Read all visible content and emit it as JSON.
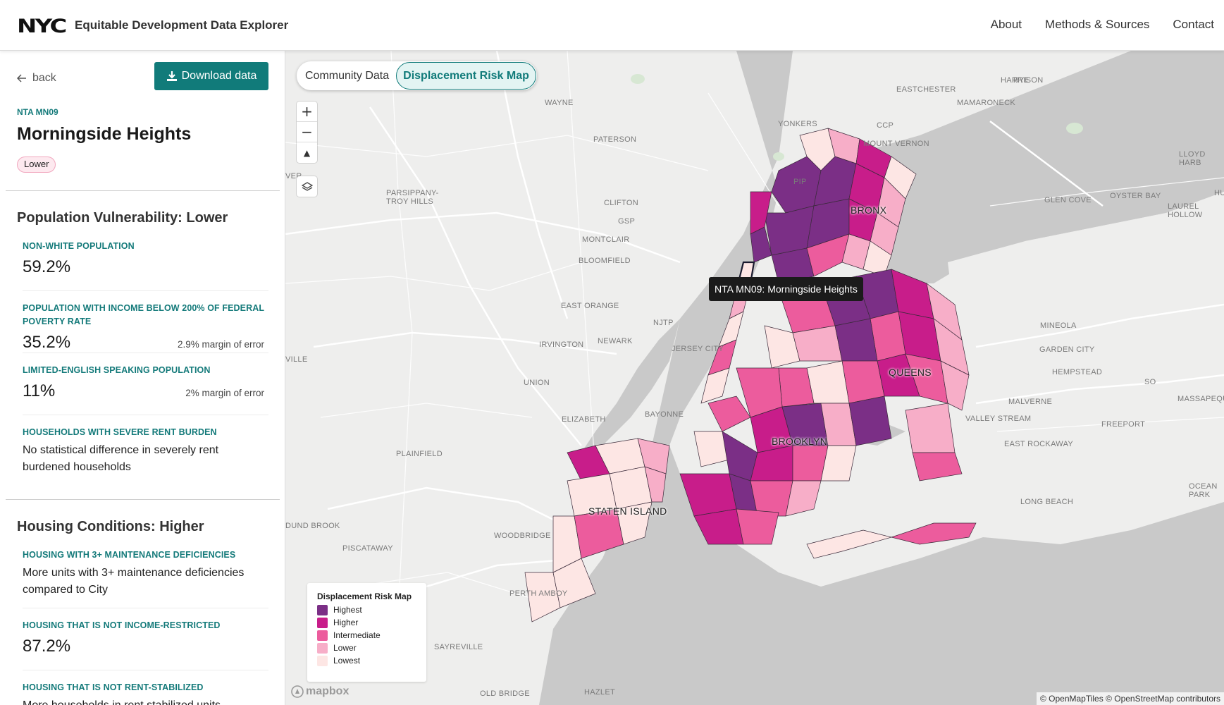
{
  "header": {
    "logo": "NYC",
    "title": "Equitable Development Data Explorer",
    "nav": [
      "About",
      "Methods & Sources",
      "Contact"
    ]
  },
  "sidebar": {
    "back_label": "back",
    "download_label": "Download data",
    "nta_code": "NTA MN09",
    "nta_name": "Morningside Heights",
    "risk_badge": "Lower",
    "sections": [
      {
        "title": "Population Vulnerability: Lower",
        "metrics": [
          {
            "label": "NON-WHITE POPULATION",
            "value": "59.2%",
            "moe": ""
          },
          {
            "label": "POPULATION WITH INCOME BELOW 200% OF FEDERAL POVERTY RATE",
            "value": "35.2%",
            "moe": "2.9% margin of error"
          },
          {
            "label": "LIMITED-ENGLISH SPEAKING POPULATION",
            "value": "11%",
            "moe": "2% margin of error"
          },
          {
            "label": "HOUSEHOLDS WITH SEVERE RENT BURDEN",
            "text": "No statistical difference in severely rent burdened households"
          }
        ]
      },
      {
        "title": "Housing Conditions: Higher",
        "metrics": [
          {
            "label": "HOUSING WITH 3+ MAINTENANCE DEFICIENCIES",
            "text": "More units with 3+ maintenance deficiencies compared to City"
          },
          {
            "label": "HOUSING THAT IS NOT INCOME-RESTRICTED",
            "value": "87.2%"
          },
          {
            "label": "HOUSING THAT IS NOT RENT-STABILIZED",
            "text": "More households in rent stabilized units"
          }
        ]
      }
    ]
  },
  "map": {
    "toggle": [
      "Community Data",
      "Displacement Risk Map"
    ],
    "active_toggle": 1,
    "zoom_in": "+",
    "zoom_out": "−",
    "compass": "▲",
    "tooltip": "NTA MN09: Morningside Heights",
    "boroughs": [
      "BRONX",
      "QUEENS",
      "BROOKLYN",
      "STATEN ISLAND"
    ],
    "places": [
      "WAYNE",
      "PATERSON",
      "PARSIPPANY-TROY HILLS",
      "CLIFTON",
      "MONTCLAIR",
      "BLOOMFIELD",
      "EAST ORANGE",
      "IRVINGTON",
      "NEWARK",
      "JERSEY CITY",
      "UNION",
      "ELIZABETH",
      "BAYONNE",
      "PLAINFIELD",
      "WOODBRIDGE",
      "PISCATAWAY",
      "PERTH AMBOY",
      "SAYREVILLE",
      "OLD BRIDGE",
      "HAZLET",
      "YONKERS",
      "MOUNT VERNON",
      "EASTCHESTER",
      "HARRISON",
      "MAMARONECK",
      "GLEN COVE",
      "OYSTER BAY",
      "LAUREL HOLLOW",
      "LLOYD HARB",
      "MINEOLA",
      "GARDEN CITY",
      "HEMPSTEAD",
      "MALVERNE",
      "FREEPORT",
      "EAST ROCKAWAY",
      "VALLEY STREAM",
      "MASSAPEQUA",
      "LONG BEACH",
      "OCEAN PARK",
      "DUND BROOK",
      "VILLE",
      "VER",
      "GSP",
      "NJTP",
      "CCP",
      "PIP",
      "RYE",
      "HU",
      "SO"
    ],
    "legend": {
      "title": "Displacement Risk Map",
      "items": [
        {
          "label": "Highest",
          "color": "#7b2f86"
        },
        {
          "label": "Higher",
          "color": "#c81d8a"
        },
        {
          "label": "Intermediate",
          "color": "#ec5c9d"
        },
        {
          "label": "Lower",
          "color": "#f7aec8"
        },
        {
          "label": "Lowest",
          "color": "#fde6e4"
        }
      ]
    },
    "attribution": "© OpenMapTiles © OpenStreetMap contributors",
    "mapbox_logo": "mapbox"
  },
  "colors": {
    "accent": "#117b7a",
    "water": "#c8c8c8",
    "land": "#eeeeed",
    "park": "#cfe5cf"
  },
  "icons": [
    "arrow-left-icon",
    "download-icon",
    "zoom-in-icon",
    "zoom-out-icon",
    "compass-icon",
    "layers-icon",
    "mapbox-logo-icon"
  ]
}
